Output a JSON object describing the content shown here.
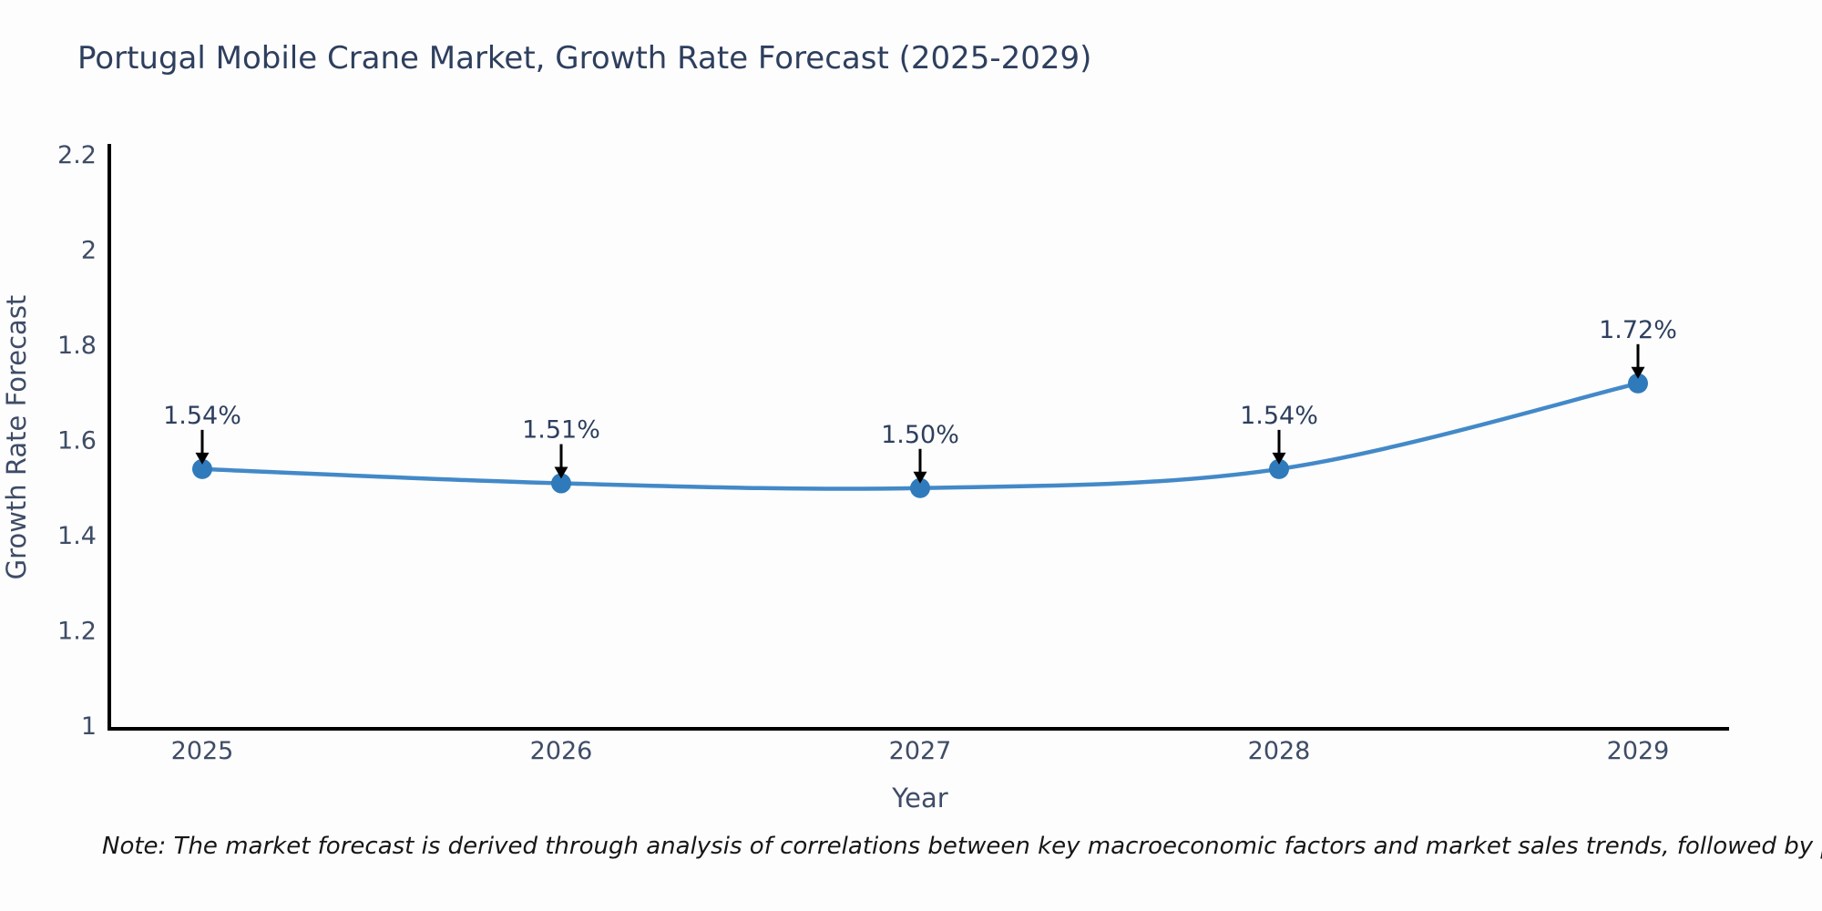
{
  "page": {
    "background": "#fdfdfd"
  },
  "chart_data": {
    "type": "line",
    "title": "Portugal Mobile Crane Market, Growth Rate Forecast (2025-2029)",
    "xlabel": "Year",
    "ylabel": "Growth Rate Forecast",
    "categories": [
      "2025",
      "2026",
      "2027",
      "2028",
      "2029"
    ],
    "series": [
      {
        "name": "Growth Rate Forecast",
        "values": [
          1.54,
          1.51,
          1.5,
          1.54,
          1.72
        ]
      }
    ],
    "point_labels": [
      "1.54%",
      "1.51%",
      "1.50%",
      "1.54%",
      "1.72%"
    ],
    "ylim": [
      1,
      2.2
    ],
    "yticks": [
      1,
      1.2,
      1.4,
      1.6,
      1.8,
      2,
      2.2
    ],
    "ytick_labels": [
      "1",
      "1.2",
      "1.4",
      "1.6",
      "1.8",
      "2",
      "2.2"
    ],
    "grid": false,
    "legend": "none",
    "line_shape": "spline",
    "annotations": "value labels with down arrows above each point",
    "colors": {
      "line": "#4389c8",
      "marker": "#2f7abb",
      "axis": "#000000",
      "arrow": "#000000",
      "title_text": "#2e3f5e",
      "tick_text": "#3e4c66",
      "annotation_text": "#2e3f5e"
    }
  },
  "note": {
    "text": "Note: The market forecast is derived through analysis of correlations between key macroeconomic factors and market sales trends, followed by predictive modeling to project future sales"
  }
}
